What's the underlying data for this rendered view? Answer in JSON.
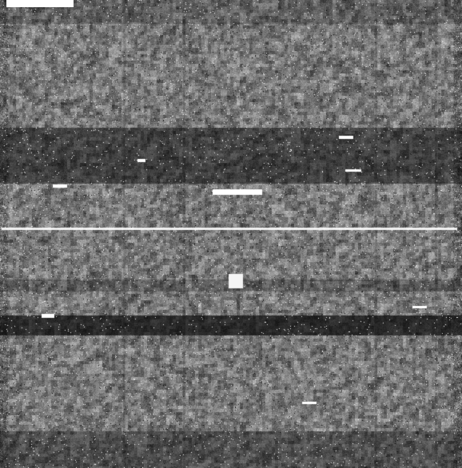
{
  "image": {
    "kind": "grayscale-noise-field",
    "colors": {
      "background": "#000000",
      "noise_mid": "#7f7f7f",
      "highlight": "#ffffff",
      "dark_band": "#141414"
    },
    "features": [
      "scale-marker",
      "bright-horizontal-streak",
      "dark-horizontal-bands",
      "bright-square-artifact",
      "bright-dash-artifacts",
      "salt-and-pepper-speckle"
    ]
  }
}
